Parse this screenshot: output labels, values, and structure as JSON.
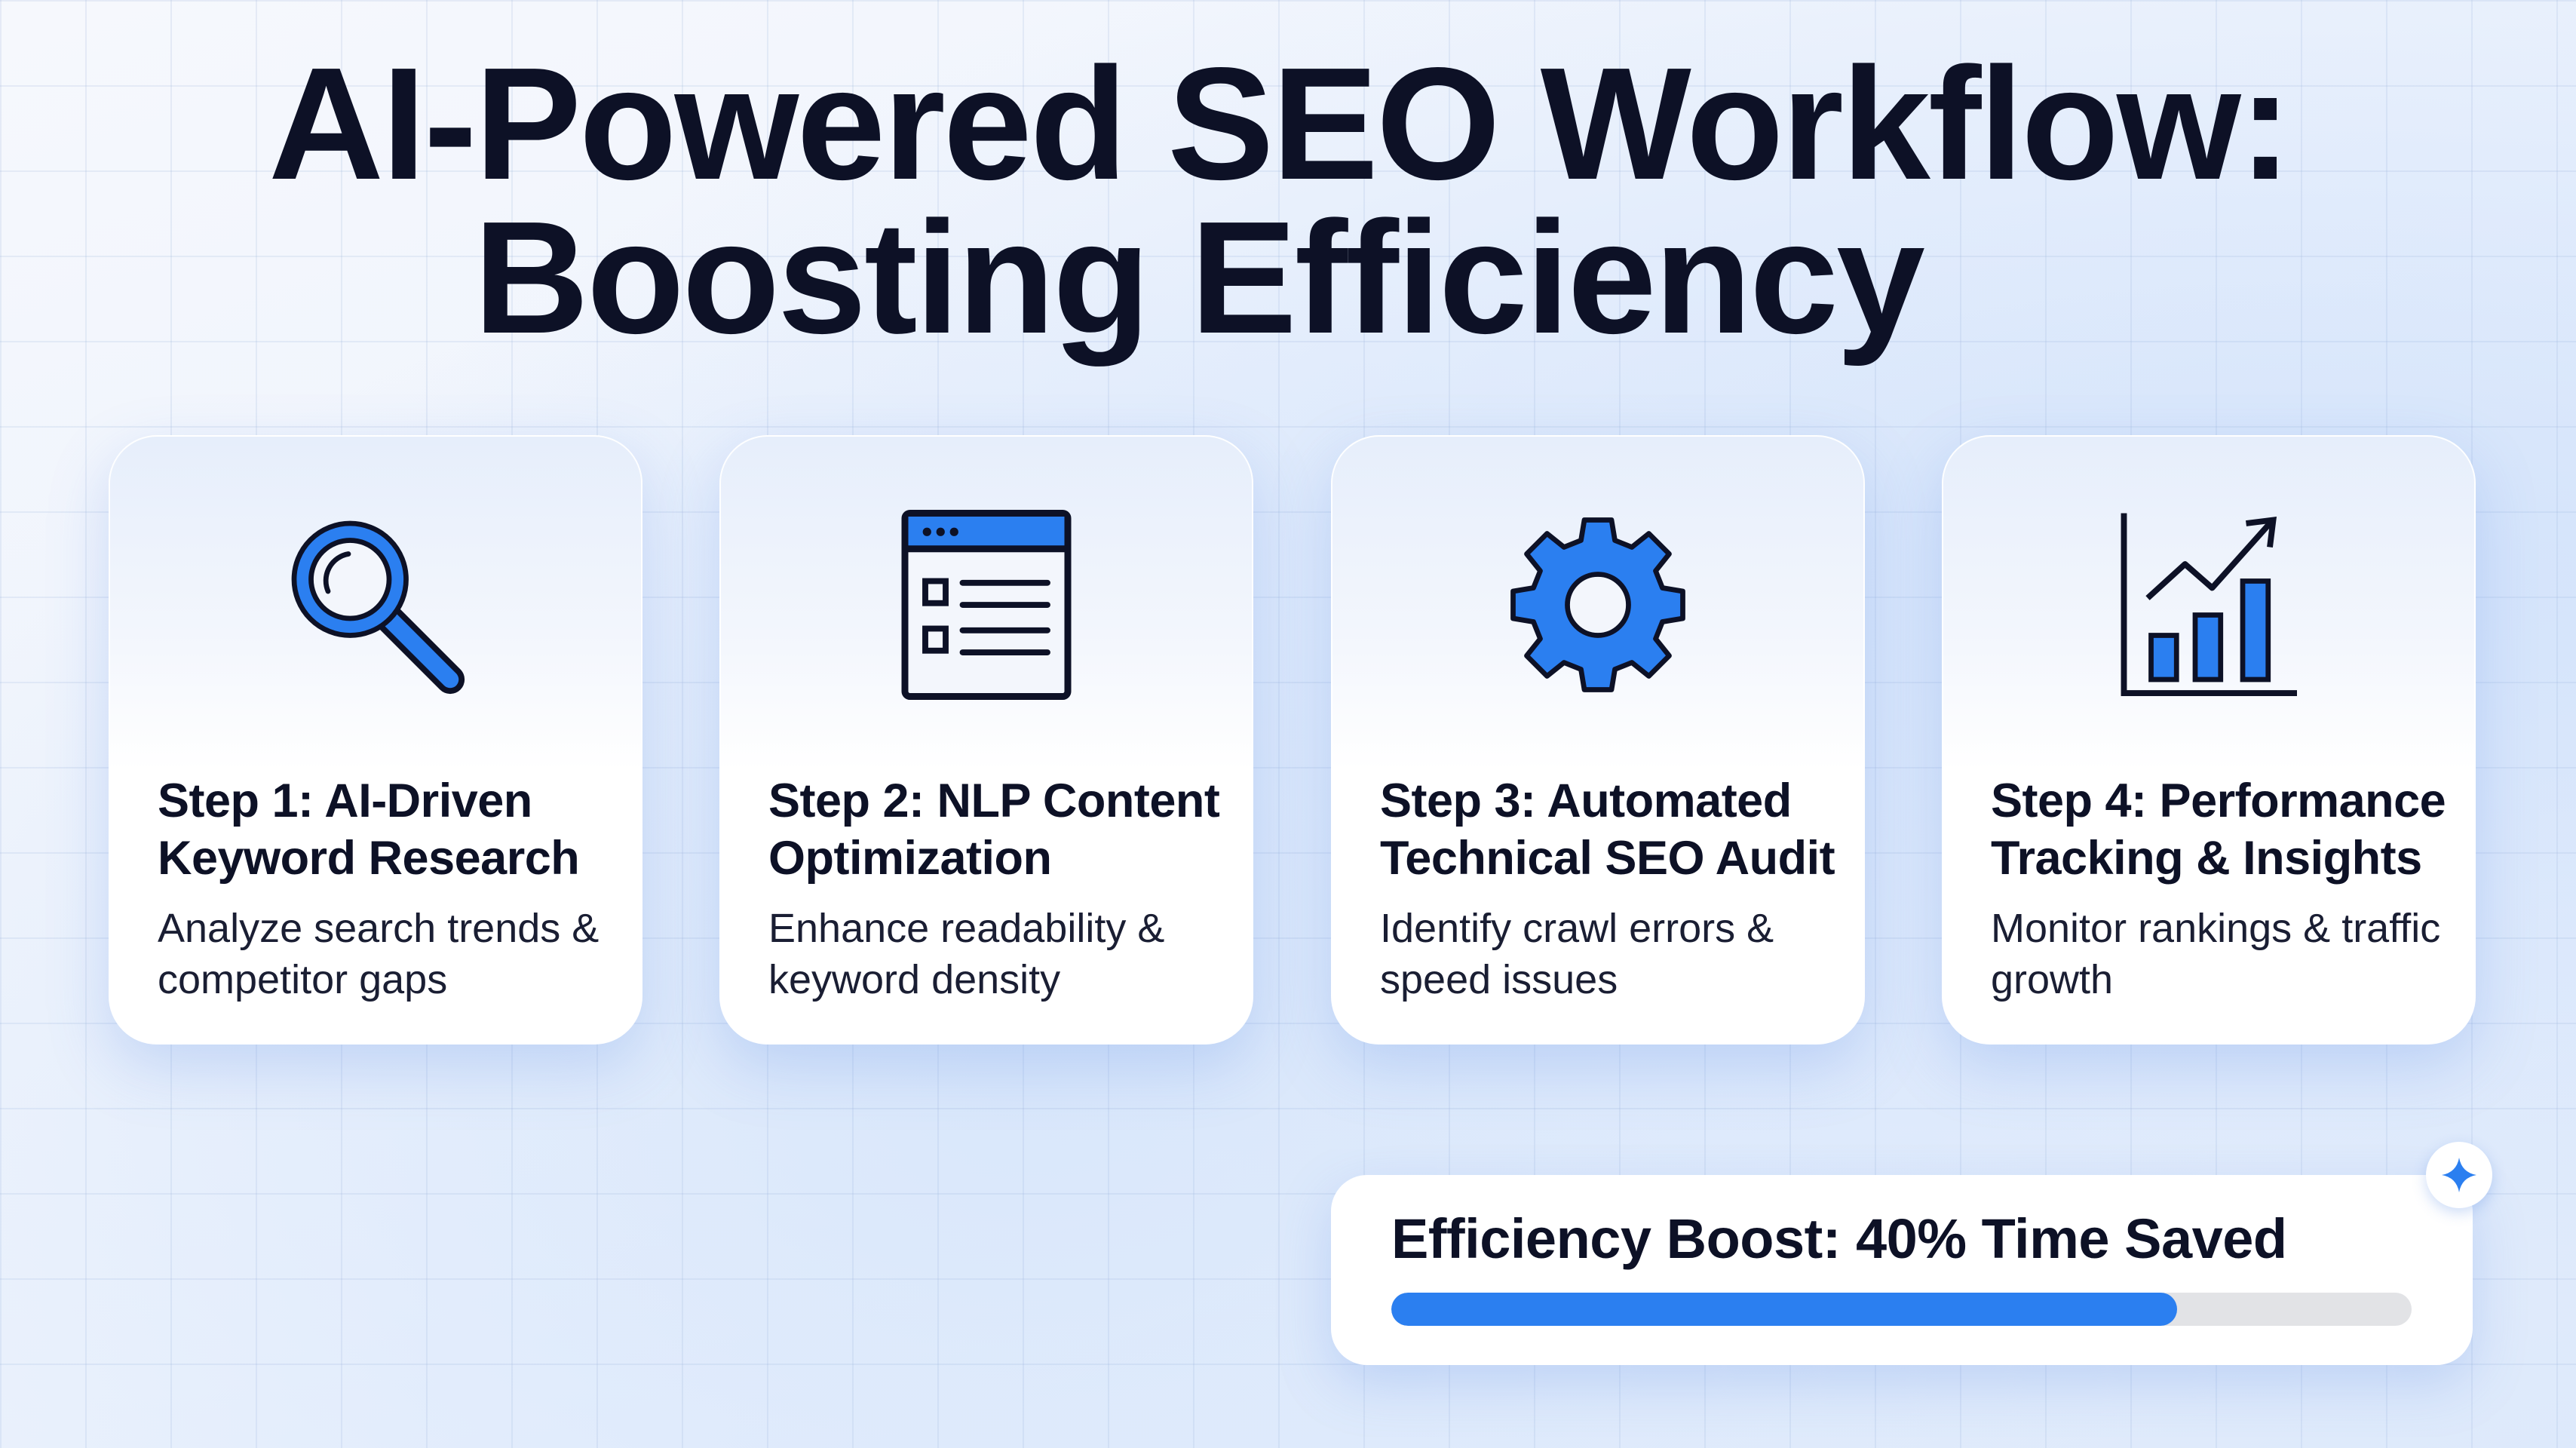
{
  "title": {
    "line1": "AI-Powered SEO Workflow:",
    "line2": "Boosting Efficiency"
  },
  "colors": {
    "accent": "#2b7ff0",
    "ink": "#0d1126",
    "track": "#e2e3e6"
  },
  "steps": [
    {
      "title": "Step 1: AI-Driven Keyword Research",
      "description": "Analyze search trends & competitor gaps",
      "icon": "magnifier-icon"
    },
    {
      "title": "Step 2: NLP Content Optimization",
      "description": "Enhance readability & keyword density",
      "icon": "document-list-icon"
    },
    {
      "title": "Step 3: Automated Technical SEO Audit",
      "description": "Identify crawl errors & speed issues",
      "icon": "gear-icon"
    },
    {
      "title": "Step 4: Performance Tracking & Insights",
      "description": "Monitor rankings & traffic growth",
      "icon": "bar-chart-growth-icon"
    }
  ],
  "efficiency": {
    "label": "Efficiency Boost: 40% Time Saved",
    "progress_percent": 77,
    "badge_icon": "sparkle-icon"
  }
}
